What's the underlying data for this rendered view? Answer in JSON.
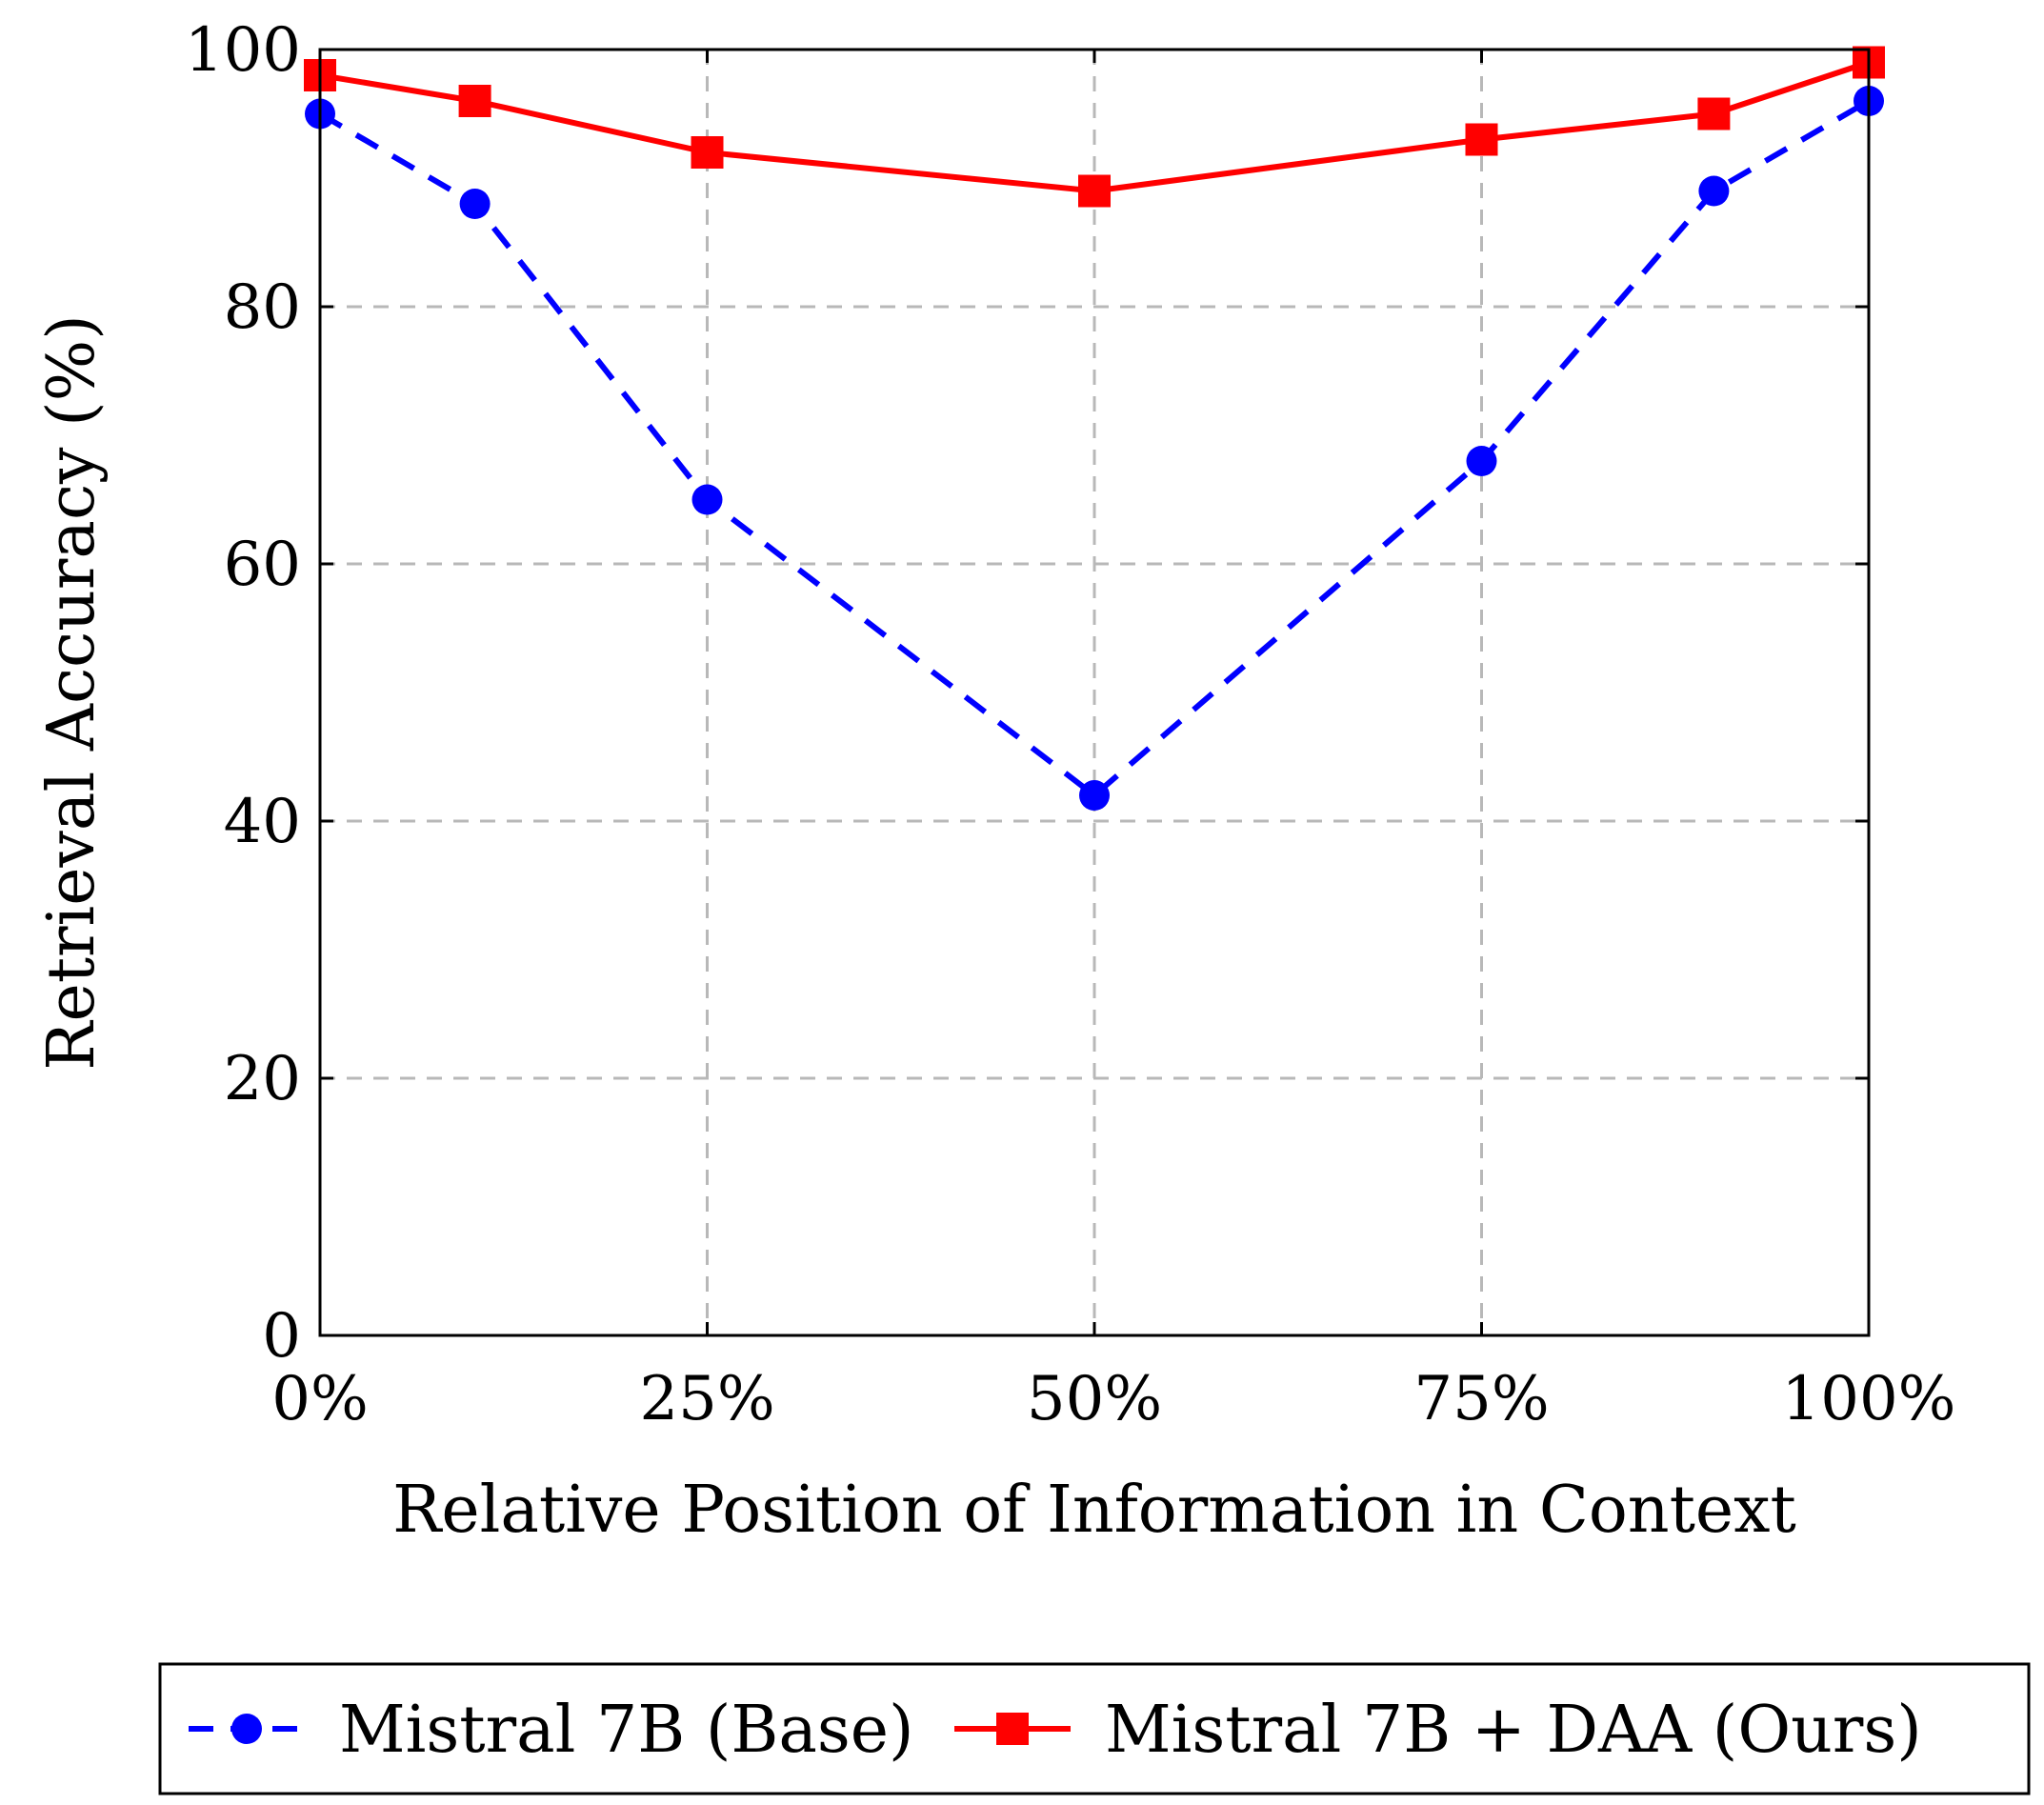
{
  "chart_data": {
    "type": "line",
    "title": "",
    "xlabel": "Relative Position of Information in Context",
    "ylabel": "Retrieval Accuracy (%)",
    "x": [
      0,
      10,
      25,
      50,
      75,
      90,
      100
    ],
    "xlim": [
      0,
      100
    ],
    "ylim": [
      0,
      100
    ],
    "xticks": [
      0,
      25,
      50,
      75,
      100
    ],
    "xtick_labels": [
      "0%",
      "25%",
      "50%",
      "75%",
      "100%"
    ],
    "yticks": [
      0,
      20,
      40,
      60,
      80,
      100
    ],
    "ytick_labels": [
      "0",
      "20",
      "40",
      "60",
      "80",
      "100"
    ],
    "grid": true,
    "legend_position": "bottom",
    "series": [
      {
        "name": "Mistral 7B (Base)",
        "values": [
          95,
          88,
          65,
          42,
          68,
          89,
          96
        ],
        "color": "#0000ff",
        "line_style": "dashed",
        "marker": "circle"
      },
      {
        "name": "Mistral 7B + DAA (Ours)",
        "values": [
          98,
          96,
          92,
          89,
          93,
          95,
          99
        ],
        "color": "#ff0000",
        "line_style": "solid",
        "marker": "square"
      }
    ]
  }
}
